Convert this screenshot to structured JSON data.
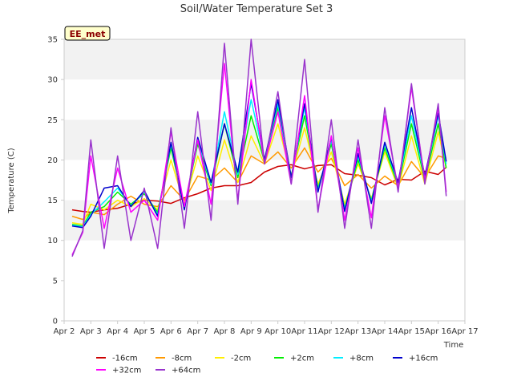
{
  "chart_data": {
    "type": "line",
    "title": "Soil/Water Temperature Set 3",
    "xlabel": "Time",
    "ylabel": "Temperature (C)",
    "badge": "EE_met",
    "ylim": [
      0,
      35
    ],
    "yticks": [
      0,
      5,
      10,
      15,
      20,
      25,
      30,
      35
    ],
    "xlim": [
      2,
      17
    ],
    "xticks": [
      2,
      3,
      4,
      5,
      6,
      7,
      8,
      9,
      10,
      11,
      12,
      13,
      14,
      15,
      16,
      17
    ],
    "xtick_labels": [
      "Apr 2",
      "Apr 3",
      "Apr 4",
      "Apr 5",
      "Apr 6",
      "Apr 7",
      "Apr 8",
      "Apr 9",
      "Apr 10",
      "Apr 11",
      "Apr 12",
      "Apr 13",
      "Apr 14",
      "Apr 15",
      "Apr 16",
      "Apr 17"
    ],
    "grid": "horizontal bands",
    "legend_position": "bottom",
    "colors": {
      "band": "#f2f2f2",
      "axis": "#cccccc",
      "badge_fill": "#ffffcc"
    },
    "series": [
      {
        "name": "-16cm",
        "color": "#cc0000",
        "x": [
          2.3,
          2.7,
          3.0,
          3.5,
          4.0,
          4.5,
          5.0,
          5.5,
          6.0,
          6.5,
          7.0,
          7.5,
          8.0,
          8.5,
          9.0,
          9.5,
          10.0,
          10.5,
          11.0,
          11.5,
          12.0,
          12.5,
          13.0,
          13.5,
          14.0,
          14.5,
          15.0,
          15.5,
          16.0,
          16.3
        ],
        "y": [
          13.8,
          13.6,
          13.5,
          13.8,
          14.0,
          14.5,
          15.0,
          14.9,
          14.6,
          15.3,
          15.8,
          16.5,
          16.8,
          16.8,
          17.2,
          18.5,
          19.2,
          19.4,
          18.9,
          19.3,
          19.4,
          18.3,
          18.1,
          17.8,
          16.9,
          17.6,
          17.5,
          18.6,
          18.2,
          19.1
        ]
      },
      {
        "name": "-8cm",
        "color": "#ff9900",
        "x": [
          2.3,
          2.7,
          3.0,
          3.5,
          4.0,
          4.5,
          5.0,
          5.5,
          6.0,
          6.5,
          7.0,
          7.5,
          8.0,
          8.5,
          9.0,
          9.5,
          10.0,
          10.5,
          11.0,
          11.5,
          12.0,
          12.5,
          13.0,
          13.5,
          14.0,
          14.5,
          15.0,
          15.5,
          16.0,
          16.3
        ],
        "y": [
          13.0,
          12.6,
          13.5,
          13.2,
          14.5,
          15.5,
          14.5,
          14.2,
          16.8,
          15.0,
          18.0,
          17.5,
          19.0,
          17.2,
          20.5,
          19.5,
          21.0,
          19.0,
          21.5,
          18.5,
          20.2,
          16.8,
          18.2,
          16.5,
          18.0,
          16.8,
          19.8,
          17.8,
          20.5,
          20.2
        ]
      },
      {
        "name": "-2cm",
        "color": "#ffee00",
        "x": [
          2.3,
          2.7,
          3.0,
          3.5,
          4.0,
          4.5,
          5.0,
          5.5,
          6.0,
          6.5,
          7.0,
          7.5,
          8.0,
          8.5,
          9.0,
          9.5,
          10.0,
          10.5,
          11.0,
          11.5,
          12.0,
          12.5,
          13.0,
          13.5,
          14.0,
          14.5,
          15.0,
          15.5,
          16.0,
          16.3
        ],
        "y": [
          12.2,
          12.0,
          14.5,
          13.8,
          15.0,
          14.2,
          15.2,
          13.8,
          20.0,
          14.5,
          20.5,
          16.2,
          22.5,
          17.2,
          23.0,
          19.5,
          24.5,
          18.0,
          24.0,
          17.0,
          21.0,
          14.5,
          19.5,
          15.2,
          21.0,
          16.5,
          23.0,
          17.0,
          23.5,
          19.0
        ]
      },
      {
        "name": "+2cm",
        "color": "#00ee00",
        "x": [
          2.3,
          2.7,
          3.0,
          3.5,
          4.0,
          4.5,
          5.0,
          5.5,
          6.0,
          6.5,
          7.0,
          7.5,
          8.0,
          8.5,
          9.0,
          9.5,
          10.0,
          10.5,
          11.0,
          11.5,
          12.0,
          12.5,
          13.0,
          13.5,
          14.0,
          14.5,
          15.0,
          15.5,
          16.0,
          16.3
        ],
        "y": [
          12.0,
          11.8,
          13.5,
          14.2,
          16.0,
          14.5,
          15.8,
          13.5,
          21.5,
          14.2,
          22.0,
          16.8,
          24.5,
          17.8,
          25.5,
          19.8,
          26.5,
          18.0,
          25.5,
          16.5,
          22.0,
          14.0,
          20.0,
          15.0,
          21.5,
          16.8,
          24.5,
          17.5,
          24.5,
          19.0
        ]
      },
      {
        "name": "+8cm",
        "color": "#00eeff",
        "x": [
          2.3,
          2.7,
          3.0,
          3.5,
          4.0,
          4.5,
          5.0,
          5.5,
          6.0,
          6.5,
          7.0,
          7.5,
          8.0,
          8.5,
          9.0,
          9.5,
          10.0,
          10.5,
          11.0,
          11.5,
          12.0,
          12.5,
          13.0,
          13.5,
          14.0,
          14.5,
          15.0,
          15.5,
          16.0,
          16.3
        ],
        "y": [
          11.9,
          11.7,
          13.2,
          14.8,
          16.5,
          14.3,
          16.0,
          13.2,
          22.0,
          14.0,
          22.5,
          17.0,
          26.0,
          18.2,
          27.5,
          20.0,
          27.0,
          17.8,
          26.5,
          16.2,
          22.5,
          13.8,
          20.5,
          14.8,
          22.0,
          17.0,
          25.5,
          17.8,
          25.5,
          19.5
        ]
      },
      {
        "name": "+16cm",
        "color": "#0000cc",
        "x": [
          2.3,
          2.7,
          3.0,
          3.5,
          4.0,
          4.5,
          5.0,
          5.5,
          6.0,
          6.5,
          7.0,
          7.5,
          8.0,
          8.5,
          9.0,
          9.5,
          10.0,
          10.5,
          11.0,
          11.5,
          12.0,
          12.5,
          13.0,
          13.5,
          14.0,
          14.5,
          15.0,
          15.5,
          16.0,
          16.3
        ],
        "y": [
          11.8,
          11.6,
          13.0,
          16.5,
          16.8,
          14.2,
          16.2,
          13.0,
          22.2,
          13.8,
          22.8,
          17.2,
          24.5,
          18.5,
          29.5,
          20.0,
          27.5,
          17.8,
          27.0,
          16.0,
          22.8,
          13.6,
          20.8,
          14.6,
          22.2,
          17.2,
          26.5,
          18.0,
          25.8,
          19.8
        ]
      },
      {
        "name": "+32cm",
        "color": "#ff00ff",
        "x": [
          2.3,
          2.7,
          3.0,
          3.5,
          4.0,
          4.5,
          5.0,
          5.5,
          6.0,
          6.5,
          7.0,
          7.5,
          8.0,
          8.5,
          9.0,
          9.5,
          10.0,
          10.5,
          11.0,
          11.5,
          12.0,
          12.5,
          13.0,
          13.5,
          14.0,
          14.5,
          15.0,
          15.5,
          16.0,
          16.3
        ],
        "y": [
          8.2,
          11.0,
          20.5,
          11.5,
          19.0,
          13.5,
          15.0,
          12.5,
          23.5,
          14.2,
          22.5,
          14.5,
          32.0,
          15.0,
          30.0,
          19.5,
          26.0,
          17.0,
          28.0,
          13.8,
          23.0,
          12.5,
          21.5,
          12.8,
          25.5,
          16.5,
          29.0,
          17.5,
          26.5,
          16.0
        ]
      },
      {
        "name": "+64cm",
        "color": "#9933cc",
        "x": [
          2.3,
          2.7,
          3.0,
          3.5,
          4.0,
          4.5,
          5.0,
          5.5,
          6.0,
          6.5,
          7.0,
          7.5,
          8.0,
          8.5,
          9.0,
          9.5,
          10.0,
          10.5,
          11.0,
          11.5,
          12.0,
          12.5,
          13.0,
          13.5,
          14.0,
          14.5,
          15.0,
          15.5,
          16.0,
          16.3
        ],
        "y": [
          8.0,
          11.2,
          22.5,
          9.0,
          20.5,
          10.0,
          16.5,
          9.0,
          24.0,
          11.5,
          26.0,
          12.5,
          34.5,
          14.5,
          35.0,
          19.5,
          28.5,
          17.0,
          32.5,
          13.5,
          25.0,
          11.5,
          22.5,
          11.5,
          26.5,
          16.0,
          29.5,
          17.0,
          27.0,
          15.5
        ]
      }
    ]
  }
}
